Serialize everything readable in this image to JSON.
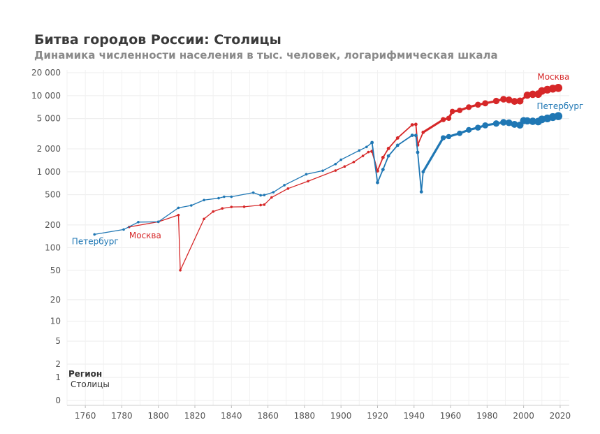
{
  "chart_data": {
    "type": "line",
    "title": "Битва городов России: Столицы",
    "subtitle": "Динамика численности населения в тыс. человек, логарифмическая шкала",
    "xlabel": "",
    "ylabel": "",
    "y_scale": "log",
    "xlim": [
      1750,
      2025
    ],
    "ylim": [
      0,
      20000
    ],
    "x_ticks": [
      1760,
      1780,
      1800,
      1820,
      1840,
      1860,
      1880,
      1900,
      1920,
      1940,
      1960,
      1980,
      2000,
      2020
    ],
    "y_ticks": [
      {
        "value": 0,
        "label": "0"
      },
      {
        "value": 1,
        "label": "1"
      },
      {
        "value": 2,
        "label": "2"
      },
      {
        "value": 5,
        "label": "5"
      },
      {
        "value": 10,
        "label": "10"
      },
      {
        "value": 20,
        "label": "20"
      },
      {
        "value": 50,
        "label": "50"
      },
      {
        "value": 100,
        "label": "100"
      },
      {
        "value": 200,
        "label": "200"
      },
      {
        "value": 500,
        "label": "500"
      },
      {
        "value": 1000,
        "label": "1 000"
      },
      {
        "value": 2000,
        "label": "2 000"
      },
      {
        "value": 5000,
        "label": "5 000"
      },
      {
        "value": 10000,
        "label": "10 000"
      },
      {
        "value": 20000,
        "label": "20 000"
      }
    ],
    "legend": {
      "title": "Регион",
      "items": [
        "Столицы"
      ],
      "position": "bottom-left"
    },
    "series": [
      {
        "name": "Москва",
        "color": "#d62728",
        "points": [
          [
            1784,
            188
          ],
          [
            1800,
            220
          ],
          [
            1811,
            270
          ],
          [
            1812,
            50
          ],
          [
            1825,
            240
          ],
          [
            1830,
            300
          ],
          [
            1835,
            330
          ],
          [
            1840,
            345
          ],
          [
            1847,
            347
          ],
          [
            1856,
            365
          ],
          [
            1858,
            370
          ],
          [
            1862,
            460
          ],
          [
            1871,
            602
          ],
          [
            1882,
            753
          ],
          [
            1897,
            1039
          ],
          [
            1902,
            1175
          ],
          [
            1907,
            1345
          ],
          [
            1912,
            1618
          ],
          [
            1915,
            1817
          ],
          [
            1917,
            1854
          ],
          [
            1920,
            1028
          ],
          [
            1923,
            1542
          ],
          [
            1926,
            2026
          ],
          [
            1931,
            2781
          ],
          [
            1939,
            4137
          ],
          [
            1941,
            4200
          ],
          [
            1942,
            2250
          ],
          [
            1945,
            3300
          ],
          [
            1956,
            4839
          ],
          [
            1959,
            5046
          ],
          [
            1961,
            6200
          ],
          [
            1965,
            6400
          ],
          [
            1970,
            7061
          ],
          [
            1975,
            7600
          ],
          [
            1979,
            7931
          ],
          [
            1985,
            8500
          ],
          [
            1989,
            8967
          ],
          [
            1992,
            8800
          ],
          [
            1995,
            8400
          ],
          [
            1998,
            8500
          ],
          [
            2002,
            10126
          ],
          [
            2005,
            10400
          ],
          [
            2008,
            10470
          ],
          [
            2010,
            11504
          ],
          [
            2013,
            11980
          ],
          [
            2016,
            12330
          ],
          [
            2019,
            12615
          ]
        ]
      },
      {
        "name": "Петербург",
        "color": "#1f77b4",
        "points": [
          [
            1765,
            150
          ],
          [
            1781,
            174
          ],
          [
            1789,
            218
          ],
          [
            1800,
            220
          ],
          [
            1811,
            336
          ],
          [
            1818,
            361
          ],
          [
            1825,
            425
          ],
          [
            1833,
            450
          ],
          [
            1836,
            470
          ],
          [
            1840,
            470
          ],
          [
            1852,
            532
          ],
          [
            1856,
            491
          ],
          [
            1858,
            495
          ],
          [
            1863,
            539
          ],
          [
            1869,
            667
          ],
          [
            1881,
            928
          ],
          [
            1890,
            1033
          ],
          [
            1897,
            1265
          ],
          [
            1900,
            1440
          ],
          [
            1910,
            1906
          ],
          [
            1914,
            2118
          ],
          [
            1917,
            2420
          ],
          [
            1920,
            722
          ],
          [
            1923,
            1071
          ],
          [
            1926,
            1614
          ],
          [
            1931,
            2229
          ],
          [
            1939,
            3015
          ],
          [
            1941,
            3000
          ],
          [
            1942,
            1800
          ],
          [
            1944,
            546
          ],
          [
            1945,
            1000
          ],
          [
            1956,
            2800
          ],
          [
            1959,
            2900
          ],
          [
            1965,
            3200
          ],
          [
            1970,
            3550
          ],
          [
            1975,
            3800
          ],
          [
            1979,
            4073
          ],
          [
            1985,
            4300
          ],
          [
            1989,
            4460
          ],
          [
            1992,
            4400
          ],
          [
            1995,
            4200
          ],
          [
            1998,
            4100
          ],
          [
            2000,
            4700
          ],
          [
            2002,
            4661
          ],
          [
            2005,
            4600
          ],
          [
            2008,
            4570
          ],
          [
            2010,
            4880
          ],
          [
            2013,
            5028
          ],
          [
            2016,
            5226
          ],
          [
            2019,
            5383
          ]
        ]
      }
    ]
  }
}
